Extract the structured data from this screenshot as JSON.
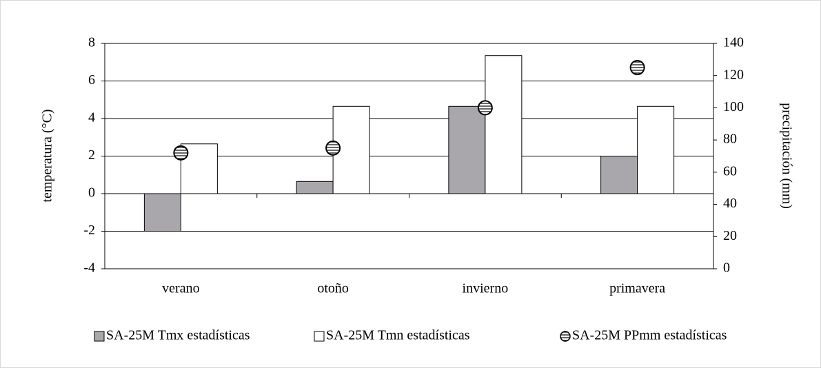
{
  "chart_data": {
    "type": "bar",
    "categories": [
      "verano",
      "otoño",
      "invierno",
      "primavera"
    ],
    "y_label": "temperatura (°C)",
    "y2_label": "precipitación (mm)",
    "ylim": [
      -4,
      8
    ],
    "yticks": [
      -4,
      -2,
      0,
      2,
      4,
      6,
      8
    ],
    "y2lim": [
      0,
      140
    ],
    "y2ticks": [
      0,
      20,
      40,
      60,
      80,
      100,
      120,
      140
    ],
    "grid": true,
    "legend": "bottom",
    "series": [
      {
        "name": "SA-25M Tmx estadísticas",
        "color": "#a9a7ab",
        "type": "bar",
        "values": [
          -2,
          0.65,
          4.65,
          2
        ]
      },
      {
        "name": "SA-25M Tmn estadísticas",
        "color": "#ffffff",
        "type": "bar",
        "values": [
          2.65,
          4.65,
          7.35,
          4.65
        ]
      },
      {
        "name": "SA-25M PPmm estadísticas",
        "color": "#ffffff",
        "type": "scatter",
        "axis": "y2",
        "values": [
          72,
          75,
          100,
          125
        ]
      }
    ]
  }
}
